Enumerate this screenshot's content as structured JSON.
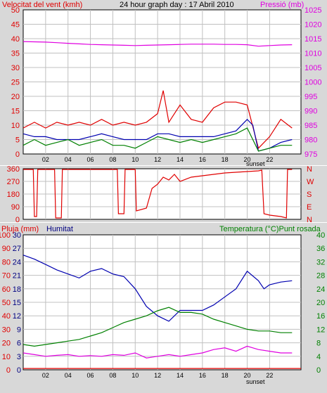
{
  "title_text": "24 hour graph day : 17 Abril 2010",
  "colors": {
    "frame_fill": "#d8d8d8",
    "plot_bg": "#ffffff",
    "grid": "#c0c0c0",
    "axis": "#000000",
    "red": "#e00000",
    "magenta": "#e000e0",
    "blue": "#0000b0",
    "green": "#008000",
    "text_dark": "#000080"
  },
  "chart_data": [
    {
      "id": "wind-pressure",
      "type": "line",
      "title": "24 hour graph day : 17 Abril 2010",
      "ylabel_left": "Velocitat del vent (kmh)",
      "ylabel_right": "Pressió (mb)",
      "x_ticks": [
        "02",
        "04",
        "06",
        "08",
        "10",
        "12",
        "14",
        "16",
        "18",
        "20",
        "22"
      ],
      "x_annotation": "sunset",
      "ylim_left": [
        0,
        50
      ],
      "y_ticks_left": [
        "0",
        "5",
        "10",
        "15",
        "20",
        "25",
        "30",
        "35",
        "40",
        "45",
        "50"
      ],
      "ylim_right": [
        975,
        1025
      ],
      "y_ticks_right": [
        "975",
        "980",
        "985",
        "990",
        "995",
        "1000",
        "1005",
        "1010",
        "1015",
        "1020",
        "1025"
      ],
      "x_range_hours": [
        0,
        24.8
      ],
      "grid": true,
      "series": [
        {
          "color_key": "magenta",
          "axis": "right",
          "points": [
            [
              0,
              1014
            ],
            [
              1,
              1013.9
            ],
            [
              2,
              1013.8
            ],
            [
              3,
              1013.6
            ],
            [
              4,
              1013.4
            ],
            [
              5,
              1013.2
            ],
            [
              6,
              1013.0
            ],
            [
              7,
              1012.9
            ],
            [
              8,
              1012.8
            ],
            [
              9,
              1012.7
            ],
            [
              10,
              1012.6
            ],
            [
              11,
              1012.7
            ],
            [
              12,
              1012.8
            ],
            [
              13,
              1012.9
            ],
            [
              14,
              1013.0
            ],
            [
              15,
              1013.1
            ],
            [
              16,
              1013.1
            ],
            [
              17,
              1013.1
            ],
            [
              18,
              1013.0
            ],
            [
              19,
              1013.0
            ],
            [
              20,
              1012.9
            ],
            [
              21,
              1012.4
            ],
            [
              22,
              1012.6
            ],
            [
              23,
              1012.8
            ],
            [
              24,
              1012.9
            ]
          ]
        },
        {
          "color_key": "red",
          "axis": "left",
          "points": [
            [
              0,
              9
            ],
            [
              1,
              11
            ],
            [
              2,
              9
            ],
            [
              3,
              11
            ],
            [
              4,
              10
            ],
            [
              5,
              11
            ],
            [
              6,
              10
            ],
            [
              7,
              12
            ],
            [
              8,
              10
            ],
            [
              9,
              11
            ],
            [
              10,
              10
            ],
            [
              11,
              11
            ],
            [
              12,
              14
            ],
            [
              12.5,
              22
            ],
            [
              13,
              11
            ],
            [
              14,
              17
            ],
            [
              15,
              12
            ],
            [
              16,
              11
            ],
            [
              17,
              16
            ],
            [
              18,
              18
            ],
            [
              19,
              18
            ],
            [
              20,
              17
            ],
            [
              21,
              2
            ],
            [
              22,
              6
            ],
            [
              23,
              12
            ],
            [
              24,
              9
            ]
          ]
        },
        {
          "color_key": "blue",
          "axis": "left",
          "points": [
            [
              0,
              7
            ],
            [
              1,
              6
            ],
            [
              2,
              6
            ],
            [
              3,
              5
            ],
            [
              4,
              5
            ],
            [
              5,
              5
            ],
            [
              6,
              6
            ],
            [
              7,
              7
            ],
            [
              8,
              6
            ],
            [
              9,
              5
            ],
            [
              10,
              5
            ],
            [
              11,
              5
            ],
            [
              12,
              7
            ],
            [
              13,
              7
            ],
            [
              14,
              6
            ],
            [
              15,
              6
            ],
            [
              16,
              6
            ],
            [
              17,
              6
            ],
            [
              18,
              7
            ],
            [
              19,
              8
            ],
            [
              20,
              12
            ],
            [
              20.5,
              10
            ],
            [
              21,
              1
            ],
            [
              22,
              2
            ],
            [
              23,
              4
            ],
            [
              24,
              5
            ]
          ]
        },
        {
          "color_key": "green",
          "axis": "left",
          "points": [
            [
              0,
              3
            ],
            [
              1,
              5
            ],
            [
              2,
              3
            ],
            [
              3,
              4
            ],
            [
              4,
              5
            ],
            [
              5,
              3
            ],
            [
              6,
              4
            ],
            [
              7,
              5
            ],
            [
              8,
              3
            ],
            [
              9,
              3
            ],
            [
              10,
              2
            ],
            [
              11,
              4
            ],
            [
              12,
              6
            ],
            [
              13,
              5
            ],
            [
              14,
              4
            ],
            [
              15,
              5
            ],
            [
              16,
              4
            ],
            [
              17,
              5
            ],
            [
              18,
              6
            ],
            [
              19,
              7
            ],
            [
              20,
              9
            ],
            [
              21,
              1
            ],
            [
              22,
              2
            ],
            [
              23,
              3
            ],
            [
              24,
              3
            ]
          ]
        }
      ]
    },
    {
      "id": "wind-direction",
      "type": "line",
      "ylim_left": [
        0,
        360
      ],
      "y_ticks_left": [
        "0",
        "90",
        "180",
        "270",
        "360"
      ],
      "y_ticks_right": [
        "N",
        "E",
        "S",
        "W",
        "N"
      ],
      "x_range_hours": [
        0,
        24.8
      ],
      "grid": true,
      "series": [
        {
          "color_key": "red",
          "axis": "left",
          "points": [
            [
              0,
              355
            ],
            [
              0.9,
              355
            ],
            [
              1,
              20
            ],
            [
              1.2,
              20
            ],
            [
              1.3,
              355
            ],
            [
              2.8,
              355
            ],
            [
              2.9,
              10
            ],
            [
              3.4,
              10
            ],
            [
              3.5,
              355
            ],
            [
              8.4,
              355
            ],
            [
              8.5,
              40
            ],
            [
              9,
              40
            ],
            [
              9.1,
              355
            ],
            [
              10,
              355
            ],
            [
              10.1,
              60
            ],
            [
              11,
              80
            ],
            [
              11.5,
              220
            ],
            [
              12,
              250
            ],
            [
              12.5,
              300
            ],
            [
              13,
              280
            ],
            [
              13.5,
              320
            ],
            [
              14,
              270
            ],
            [
              15,
              300
            ],
            [
              16,
              310
            ],
            [
              17,
              320
            ],
            [
              18,
              330
            ],
            [
              19,
              335
            ],
            [
              20,
              340
            ],
            [
              21,
              345
            ],
            [
              21.3,
              350
            ],
            [
              21.5,
              40
            ],
            [
              22,
              30
            ],
            [
              23,
              20
            ],
            [
              23.5,
              10
            ],
            [
              23.6,
              355
            ],
            [
              24,
              355
            ]
          ]
        }
      ]
    },
    {
      "id": "rain-humidity-temp",
      "type": "line",
      "ylabel_left_1": "Pluja (mm)",
      "ylabel_left_2": "Humitat",
      "ylabel_right": "Temperatura (°C)Punt rosada",
      "x_ticks": [
        "02",
        "04",
        "06",
        "08",
        "10",
        "12",
        "14",
        "16",
        "18",
        "20",
        "22"
      ],
      "x_annotation": "sunset",
      "ylim_rain": [
        0,
        30
      ],
      "y_ticks_rain": [
        "0",
        "3",
        "6",
        "9",
        "12",
        "15",
        "18",
        "21",
        "24",
        "27",
        "30"
      ],
      "ylim_hum": [
        0,
        100
      ],
      "y_ticks_hum": [
        "0",
        "10",
        "20",
        "30",
        "40",
        "50",
        "60",
        "70",
        "80",
        "90",
        "100"
      ],
      "ylim_temp": [
        0,
        40
      ],
      "y_ticks_temp": [
        "0",
        "4",
        "8",
        "12",
        "16",
        "20",
        "24",
        "28",
        "32",
        "36",
        "40"
      ],
      "x_range_hours": [
        0,
        24.8
      ],
      "grid": true,
      "series": [
        {
          "color_key": "blue",
          "axis": "hum",
          "points": [
            [
              0,
              85
            ],
            [
              1,
              82
            ],
            [
              2,
              78
            ],
            [
              3,
              74
            ],
            [
              4,
              71
            ],
            [
              5,
              68
            ],
            [
              6,
              73
            ],
            [
              7,
              75
            ],
            [
              8,
              71
            ],
            [
              9,
              69
            ],
            [
              10,
              60
            ],
            [
              11,
              47
            ],
            [
              12,
              40
            ],
            [
              13,
              36
            ],
            [
              14,
              44
            ],
            [
              15,
              44
            ],
            [
              16,
              44
            ],
            [
              17,
              48
            ],
            [
              18,
              54
            ],
            [
              19,
              60
            ],
            [
              20,
              73
            ],
            [
              21,
              66
            ],
            [
              21.5,
              60
            ],
            [
              22,
              63
            ],
            [
              23,
              65
            ],
            [
              24,
              66
            ]
          ]
        },
        {
          "color_key": "green",
          "axis": "temp",
          "points": [
            [
              0,
              7.5
            ],
            [
              1,
              7
            ],
            [
              2,
              7.5
            ],
            [
              3,
              8
            ],
            [
              4,
              8.5
            ],
            [
              5,
              9
            ],
            [
              6,
              10
            ],
            [
              7,
              11
            ],
            [
              8,
              12.5
            ],
            [
              9,
              14
            ],
            [
              10,
              15
            ],
            [
              11,
              16
            ],
            [
              12,
              17.5
            ],
            [
              13,
              18.5
            ],
            [
              14,
              17
            ],
            [
              15,
              17
            ],
            [
              16,
              16.5
            ],
            [
              17,
              15
            ],
            [
              18,
              14
            ],
            [
              19,
              13
            ],
            [
              20,
              12
            ],
            [
              21,
              11.5
            ],
            [
              22,
              11.5
            ],
            [
              23,
              11
            ],
            [
              24,
              11
            ]
          ]
        },
        {
          "color_key": "magenta",
          "axis": "temp",
          "points": [
            [
              0,
              5
            ],
            [
              1,
              4.5
            ],
            [
              2,
              4
            ],
            [
              3,
              4.3
            ],
            [
              4,
              4.5
            ],
            [
              5,
              4
            ],
            [
              6,
              4.2
            ],
            [
              7,
              4
            ],
            [
              8,
              4.5
            ],
            [
              9,
              4.3
            ],
            [
              10,
              5
            ],
            [
              11,
              3.5
            ],
            [
              12,
              4
            ],
            [
              13,
              4.5
            ],
            [
              14,
              4
            ],
            [
              15,
              4.5
            ],
            [
              16,
              5
            ],
            [
              17,
              6
            ],
            [
              18,
              6.5
            ],
            [
              19,
              5.5
            ],
            [
              20,
              7
            ],
            [
              21,
              6
            ],
            [
              22,
              5.5
            ],
            [
              23,
              5
            ],
            [
              24,
              5
            ]
          ]
        },
        {
          "color_key": "red",
          "axis": "rain",
          "points": [
            [
              0,
              0.3
            ],
            [
              24.8,
              0.3
            ]
          ]
        }
      ]
    }
  ]
}
